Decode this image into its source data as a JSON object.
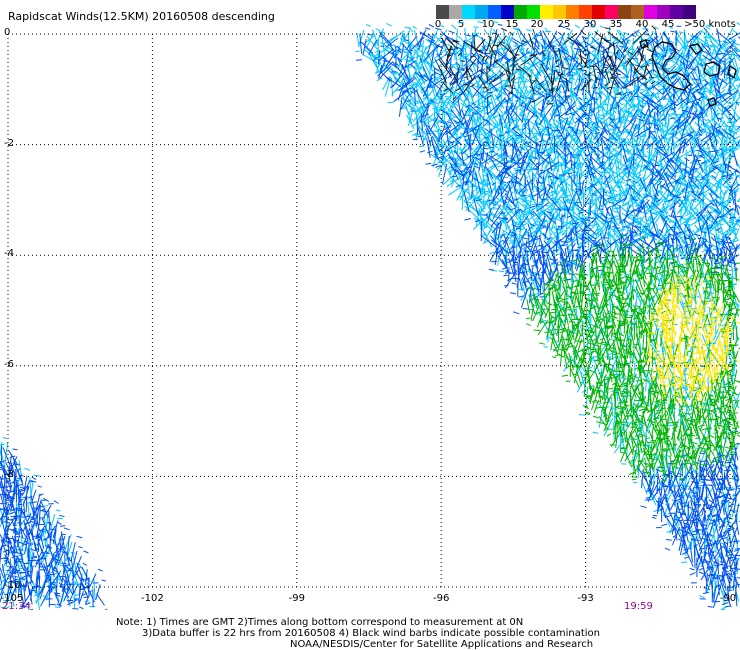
{
  "title": "Rapidscat Winds(12.5KM) 20160508 descending",
  "speed_scale": {
    "labels": [
      "0",
      "5",
      "10",
      "15",
      "20",
      "25",
      "30",
      "35",
      "40",
      "45",
      ">50 knots"
    ],
    "colors": [
      "#4a4a4a",
      "#a8a8a8",
      "#00d8ff",
      "#00a8f0",
      "#0060ff",
      "#0000c8",
      "#00a800",
      "#00e000",
      "#fff000",
      "#ffc800",
      "#ff8000",
      "#ff4000",
      "#e00000",
      "#ff0060",
      "#8b4513",
      "#b06020",
      "#e000e0",
      "#a000c0",
      "#6000a0",
      "#400080"
    ]
  },
  "axes": {
    "lat_labels": [
      "0",
      "-2",
      "-4",
      "-6",
      "-8",
      "-10"
    ],
    "lon_labels": [
      "-105",
      "-102",
      "-99",
      "-96",
      "-93",
      "-90"
    ],
    "lat_range": [
      -10,
      0
    ],
    "lon_range": [
      -105,
      -90
    ]
  },
  "times": {
    "left": "21:34",
    "right": "19:59"
  },
  "notes": {
    "line1": "Note: 1) Times are GMT 2)Times along bottom correspond to measurement at 0N",
    "line2": "3)Data buffer is 22 hrs from 20160508 4) Black wind barbs indicate possible contamination",
    "line3": "NOAA/NESDIS/Center for Satellite Applications and Research"
  },
  "wind_colors": {
    "calm": "#1a1a1a",
    "light": "#00c8ff",
    "moderate": "#0050f0",
    "strong": "#00b400",
    "very_strong": "#ffe600"
  },
  "land_color": "#000000"
}
